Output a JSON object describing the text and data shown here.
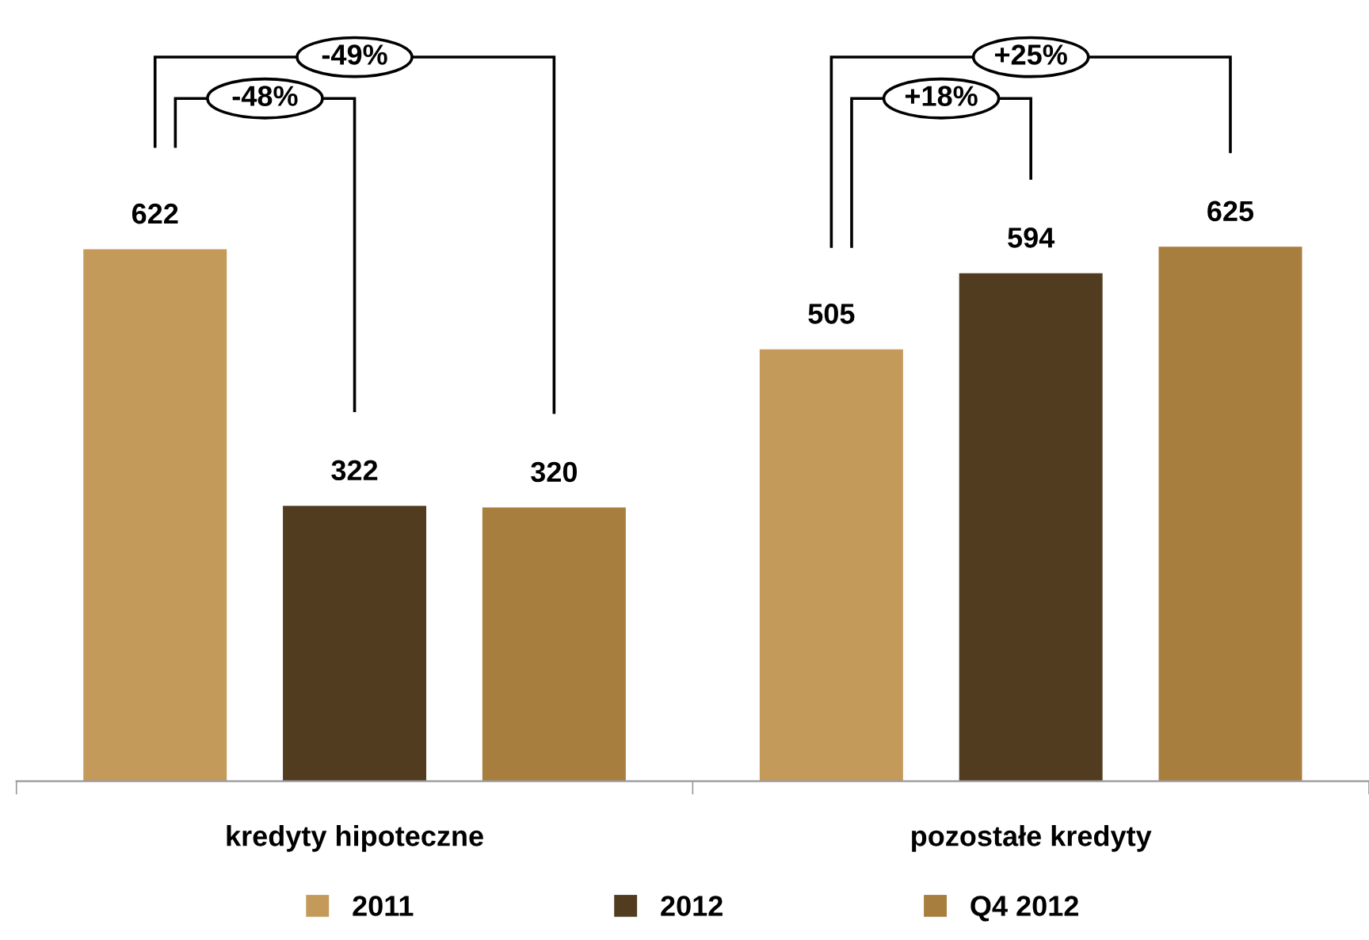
{
  "chart_data": {
    "type": "bar",
    "categories": [
      "kredyty hipoteczne",
      "pozostałe kredyty"
    ],
    "series": [
      {
        "name": "2011",
        "color": "#c49a5a",
        "values": [
          622,
          505
        ]
      },
      {
        "name": "2012",
        "color": "#523c20",
        "values": [
          322,
          594
        ]
      },
      {
        "name": "Q4 2012",
        "color": "#a87e3e",
        "values": [
          320,
          625
        ]
      }
    ],
    "data_labels": true,
    "annotations": [
      "-48%",
      "-49%",
      "+18%",
      "+25%"
    ],
    "legend": "bottom",
    "grid": false
  }
}
